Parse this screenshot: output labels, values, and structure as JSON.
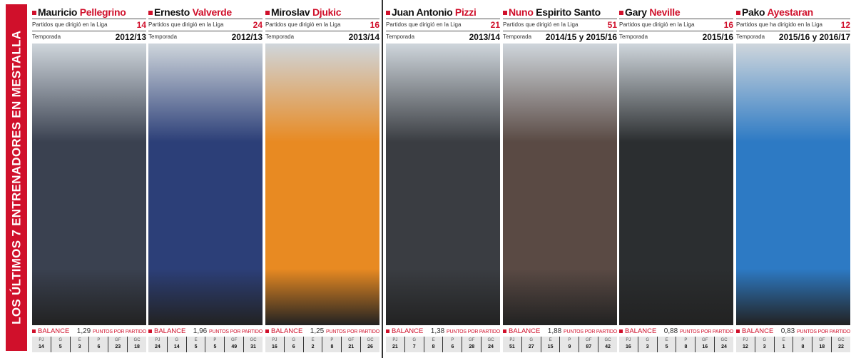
{
  "sidebar_title": "LOS ÚLTIMOS 7 ENTRENADORES EN MESTALLA",
  "stat_headers": [
    "PJ",
    "G",
    "E",
    "P",
    "GF",
    "GC"
  ],
  "balance_label": "BALANCE",
  "points_label": "PUNTOS POR PARTIDO",
  "season_label": "Temporada",
  "coaches": [
    {
      "first": "Mauricio",
      "last": "Pellegrino",
      "last_red": true,
      "matches_label": "Partidos que dirigió en la Liga",
      "matches": "14",
      "season": "2012/13",
      "ppg": "1,29",
      "stats": [
        "14",
        "5",
        "3",
        "6",
        "23",
        "18"
      ],
      "photo": "#3a4150"
    },
    {
      "first": "Ernesto",
      "last": "Valverde",
      "last_red": true,
      "matches_label": "Partidos que dirigió en la Liga",
      "matches": "24",
      "season": "2012/13",
      "ppg": "1,96",
      "stats": [
        "24",
        "14",
        "5",
        "5",
        "49",
        "31"
      ],
      "photo": "#2c3f78"
    },
    {
      "first": "Miroslav",
      "last": "Djukic",
      "last_red": true,
      "matches_label": "Partidos que dirigió en la Liga",
      "matches": "16",
      "season": "2013/14",
      "ppg": "1,25",
      "stats": [
        "16",
        "6",
        "2",
        "8",
        "21",
        "26"
      ],
      "photo": "#e88a22"
    },
    {
      "first": "Juan Antonio",
      "last": "Pizzi",
      "last_red": true,
      "matches_label": "Partidos que dirigió en la Liga",
      "matches": "21",
      "season": "2013/14",
      "ppg": "1,38",
      "stats": [
        "21",
        "7",
        "8",
        "6",
        "28",
        "24"
      ],
      "photo": "#3a3d42"
    },
    {
      "first": "Nuno",
      "last": "Espirito Santo",
      "last_red": false,
      "matches_label": "Partidos que dirigió en la Liga",
      "matches": "51",
      "season": "2014/15 y 2015/16",
      "ppg": "1,88",
      "stats": [
        "51",
        "27",
        "15",
        "9",
        "87",
        "42"
      ],
      "photo": "#5a4a44"
    },
    {
      "first": "Gary",
      "last": "Neville",
      "last_red": true,
      "matches_label": "Partidos que dirigió en la Liga",
      "matches": "16",
      "season": "2015/16",
      "ppg": "0,88",
      "stats": [
        "16",
        "3",
        "5",
        "8",
        "16",
        "24"
      ],
      "photo": "#2b2e30"
    },
    {
      "first": "Pako",
      "last": "Ayestaran",
      "last_red": true,
      "matches_label": "Partidos que ha dirigido en la Liga",
      "matches": "12",
      "season": "2015/16 y 2016/17",
      "ppg": "0,83",
      "stats": [
        "12",
        "3",
        "1",
        "8",
        "18",
        "22"
      ],
      "photo": "#2d7ac4"
    }
  ]
}
